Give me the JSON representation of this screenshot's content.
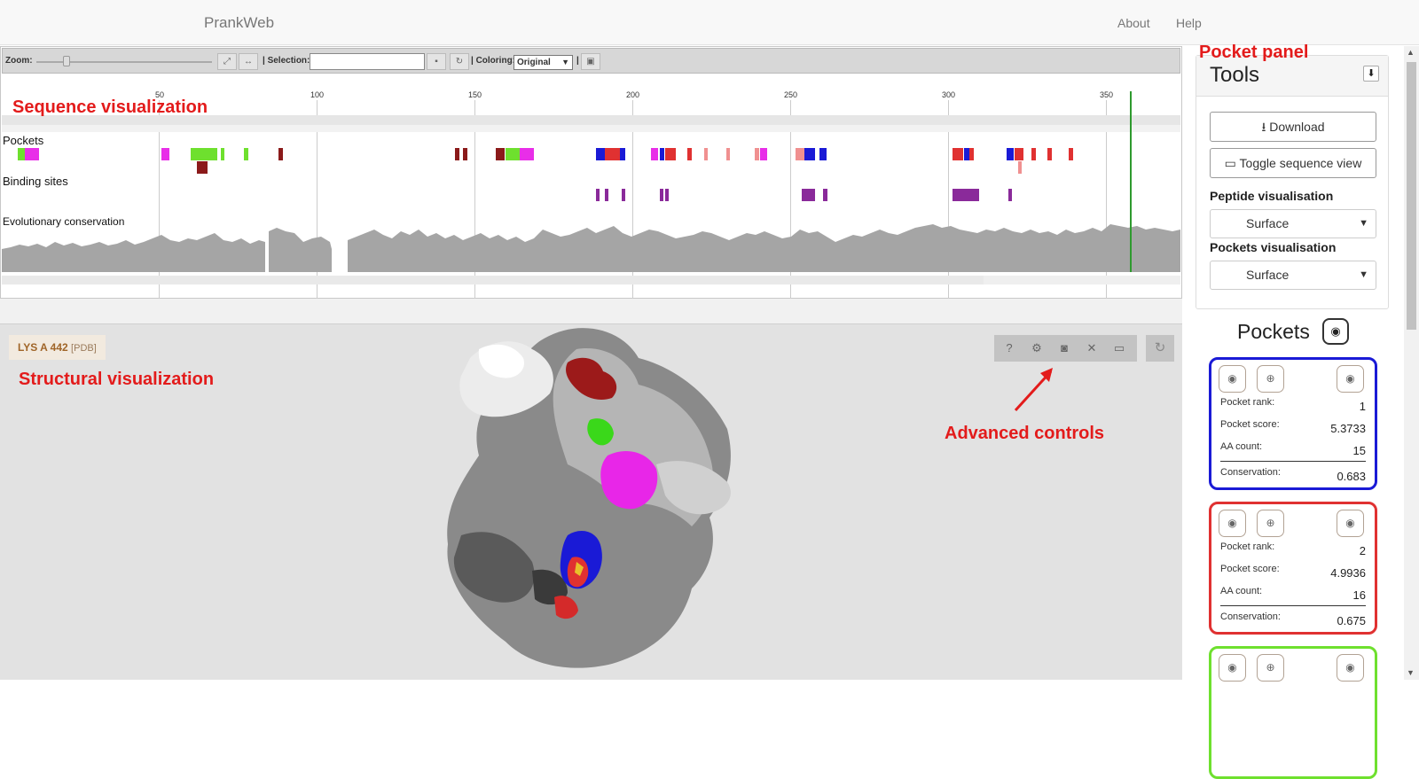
{
  "navbar": {
    "brand": "PrankWeb",
    "links": [
      "About",
      "Help"
    ]
  },
  "toolbar": {
    "zoom_label": "Zoom:",
    "selection_label": "| Selection:",
    "coloring_label": "| Coloring:",
    "coloring_value": "Original",
    "separator": "|"
  },
  "sequence": {
    "ticks": [
      "50",
      "100",
      "150",
      "200",
      "250",
      "300",
      "350"
    ],
    "tracks": {
      "pockets": "Pockets",
      "binding_sites": "Binding sites",
      "conservation": "Evolutionary conservation"
    }
  },
  "annotations": {
    "sequence": "Sequence visualization",
    "structural": "Structural visualization",
    "advanced": "Advanced controls",
    "pocket_panel": "Pocket panel"
  },
  "structure": {
    "residue": "LYS A 442",
    "source": "[PDB]"
  },
  "tools": {
    "title": "Tools",
    "download": "Download",
    "toggle": "Toggle sequence view",
    "peptide_label": "Peptide visualisation",
    "peptide_value": "Surface",
    "pockets_label": "Pockets visualisation",
    "pockets_value": "Surface"
  },
  "pockets": {
    "title": "Pockets",
    "labels": {
      "rank": "Pocket rank:",
      "score": "Pocket score:",
      "aa": "AA count:",
      "conservation": "Conservation:"
    },
    "items": [
      {
        "rank": "1",
        "score": "5.3733",
        "aa_count": "15",
        "conservation": "0.683",
        "color": "#1a1ad6"
      },
      {
        "rank": "2",
        "score": "4.9936",
        "aa_count": "16",
        "conservation": "0.675",
        "color": "#e03131"
      },
      {
        "color": "#6ee02e"
      }
    ]
  },
  "colors": {
    "accent_red": "#e31b1b",
    "green_marker": "#2e9a2e"
  }
}
